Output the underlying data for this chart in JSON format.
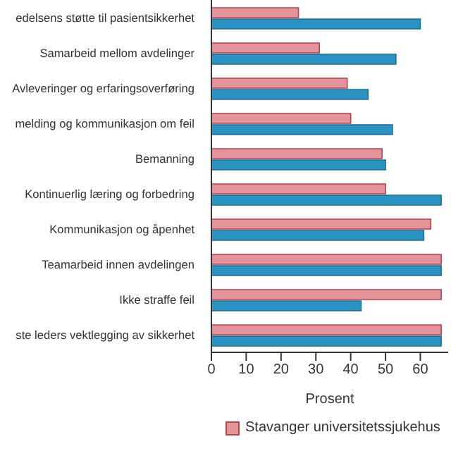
{
  "chart_data": {
    "type": "bar",
    "orientation": "horizontal",
    "xlabel": "Prosent",
    "categories": [
      "edelsens støtte til pasientsikkerhet",
      "Samarbeid mellom avdelinger",
      "Avleveringer og erfaringsoverføring",
      "melding og kommunikasjon om feil",
      "Bemanning",
      "Kontinuerlig læring og forbedring",
      "Kommunikasjon og åpenhet",
      "Teamarbeid innen avdelingen",
      "Ikke straffe feil",
      "ste leders vektlegging av sikkerhet"
    ],
    "series": [
      {
        "name": "Stavanger universitetssjukehus",
        "color": "#e4939a",
        "values": [
          25,
          31,
          39,
          40,
          49,
          50,
          63,
          66,
          66,
          66
        ]
      },
      {
        "color": "#2a93c1",
        "values": [
          60,
          53,
          45,
          52,
          50,
          66,
          61,
          66,
          43,
          66
        ]
      }
    ],
    "xlim": [
      0,
      68
    ],
    "xticks": [
      0,
      10,
      20,
      30,
      40,
      50,
      60
    ],
    "legend": "bottom"
  }
}
